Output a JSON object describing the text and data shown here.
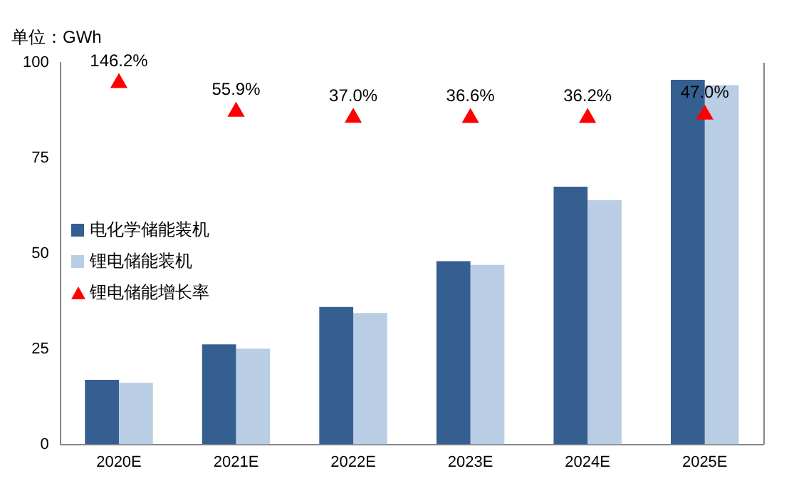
{
  "chart_data": {
    "type": "bar",
    "ylabel": "单位：GWh",
    "categories": [
      "2020E",
      "2021E",
      "2022E",
      "2023E",
      "2024E",
      "2025E"
    ],
    "series": [
      {
        "name": "电化学储能装机",
        "color": "#365f91",
        "values": [
          16.9,
          26.2,
          36.0,
          48.0,
          67.5,
          95.5
        ]
      },
      {
        "name": "锂电储能装机",
        "color": "#b9cde5",
        "values": [
          16.1,
          25.1,
          34.4,
          47.0,
          64.0,
          94.1
        ]
      },
      {
        "name": "锂电储能增长率",
        "type": "scatter",
        "axis": "y2",
        "marker": "triangle",
        "color": "#ff0000",
        "values": [
          146.2,
          55.9,
          37.0,
          36.6,
          36.2,
          47.0
        ],
        "value_labels": [
          "146.2%",
          "55.9%",
          "37.0%",
          "36.6%",
          "36.2%",
          "47.0%"
        ]
      }
    ],
    "ylim": [
      0,
      100
    ],
    "yticks": [
      0,
      25,
      50,
      75,
      100
    ],
    "y2lim": [
      -990,
      210
    ],
    "grid": false,
    "legend": "left"
  }
}
